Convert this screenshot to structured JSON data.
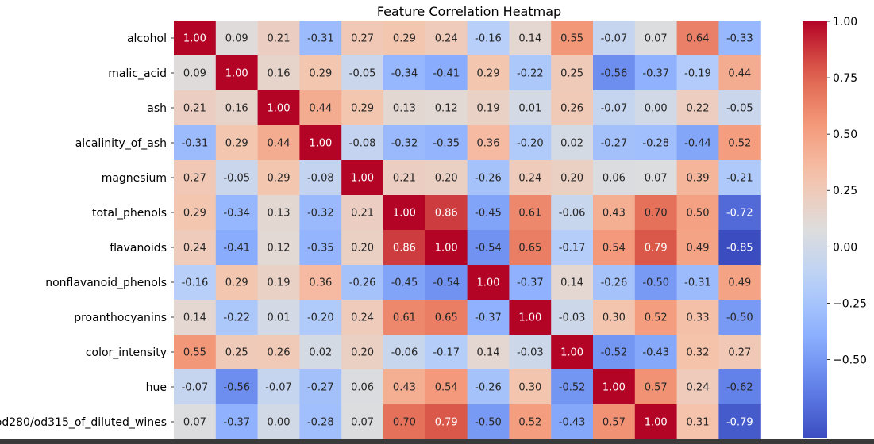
{
  "chart_data": {
    "type": "heatmap",
    "title": "Feature Correlation Heatmap",
    "xlabel": "",
    "ylabel": "",
    "row_labels": [
      "alcohol",
      "malic_acid",
      "ash",
      "alcalinity_of_ash",
      "magnesium",
      "total_phenols",
      "flavanoids",
      "nonflavanoid_phenols",
      "proanthocyanins",
      "color_intensity",
      "hue",
      "od280/od315_of_diluted_wines"
    ],
    "column_count": 14,
    "values": [
      [
        1.0,
        0.09,
        0.21,
        -0.31,
        0.27,
        0.29,
        0.24,
        -0.16,
        0.14,
        0.55,
        -0.07,
        0.07,
        0.64,
        -0.33
      ],
      [
        0.09,
        1.0,
        0.16,
        0.29,
        -0.05,
        -0.34,
        -0.41,
        0.29,
        -0.22,
        0.25,
        -0.56,
        -0.37,
        -0.19,
        0.44
      ],
      [
        0.21,
        0.16,
        1.0,
        0.44,
        0.29,
        0.13,
        0.12,
        0.19,
        0.01,
        0.26,
        -0.07,
        0.0,
        0.22,
        -0.05
      ],
      [
        -0.31,
        0.29,
        0.44,
        1.0,
        -0.08,
        -0.32,
        -0.35,
        0.36,
        -0.2,
        0.02,
        -0.27,
        -0.28,
        -0.44,
        0.52
      ],
      [
        0.27,
        -0.05,
        0.29,
        -0.08,
        1.0,
        0.21,
        0.2,
        -0.26,
        0.24,
        0.2,
        0.06,
        0.07,
        0.39,
        -0.21
      ],
      [
        0.29,
        -0.34,
        0.13,
        -0.32,
        0.21,
        1.0,
        0.86,
        -0.45,
        0.61,
        -0.06,
        0.43,
        0.7,
        0.5,
        -0.72
      ],
      [
        0.24,
        -0.41,
        0.12,
        -0.35,
        0.2,
        0.86,
        1.0,
        -0.54,
        0.65,
        -0.17,
        0.54,
        0.79,
        0.49,
        -0.85
      ],
      [
        -0.16,
        0.29,
        0.19,
        0.36,
        -0.26,
        -0.45,
        -0.54,
        1.0,
        -0.37,
        0.14,
        -0.26,
        -0.5,
        -0.31,
        0.49
      ],
      [
        0.14,
        -0.22,
        0.01,
        -0.2,
        0.24,
        0.61,
        0.65,
        -0.37,
        1.0,
        -0.03,
        0.3,
        0.52,
        0.33,
        -0.5
      ],
      [
        0.55,
        0.25,
        0.26,
        0.02,
        0.2,
        -0.06,
        -0.17,
        0.14,
        -0.03,
        1.0,
        -0.52,
        -0.43,
        0.32,
        0.27
      ],
      [
        -0.07,
        -0.56,
        -0.07,
        -0.27,
        0.06,
        0.43,
        0.54,
        -0.26,
        0.3,
        -0.52,
        1.0,
        0.57,
        0.24,
        -0.62
      ],
      [
        0.07,
        -0.37,
        0.0,
        -0.28,
        0.07,
        0.7,
        0.79,
        -0.5,
        0.52,
        -0.43,
        0.57,
        1.0,
        0.31,
        -0.79
      ]
    ],
    "colormap": "coolwarm",
    "vmin": -0.85,
    "vmax": 1.0,
    "colorbar_ticks": [
      "1.00",
      "0.75",
      "0.50",
      "0.25",
      "0.00",
      "−0.25",
      "−0.50"
    ],
    "annotations": true,
    "grid": false
  }
}
